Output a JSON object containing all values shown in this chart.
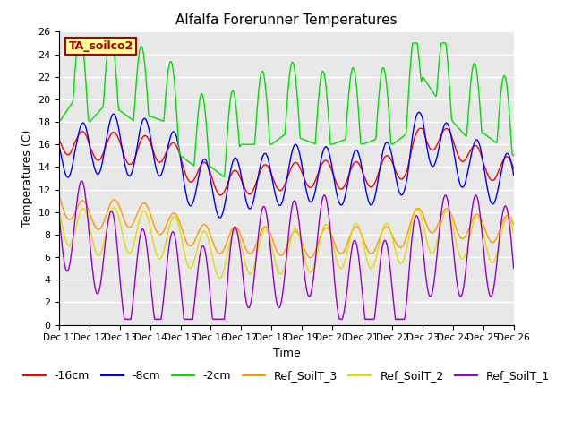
{
  "title": "Alfalfa Forerunner Temperatures",
  "xlabel": "Time",
  "ylabel": "Temperatures (C)",
  "annotation": "TA_soilco2",
  "ylim": [
    0,
    26
  ],
  "yticks": [
    0,
    2,
    4,
    6,
    8,
    10,
    12,
    14,
    16,
    18,
    20,
    22,
    24,
    26
  ],
  "x_labels": [
    "Dec 11",
    "Dec 12",
    "Dec 13",
    "Dec 14",
    "Dec 15",
    "Dec 16",
    "Dec 17",
    "Dec 18",
    "Dec 19",
    "Dec 20",
    "Dec 21",
    "Dec 22",
    "Dec 23",
    "Dec 24",
    "Dec 25",
    "Dec 26"
  ],
  "series_colors": {
    "-16cm": "#ff0000",
    "-8cm": "#0000ff",
    "-2cm": "#00dd00",
    "Ref_SoilT_3": "#ff9900",
    "Ref_SoilT_2": "#dddd00",
    "Ref_SoilT_1": "#9900cc"
  },
  "plot_bg_color": "#e8e8e8",
  "title_fontsize": 11,
  "legend_fontsize": 9,
  "annotation_bg": "#ffff99",
  "annotation_border": "#aa0000"
}
